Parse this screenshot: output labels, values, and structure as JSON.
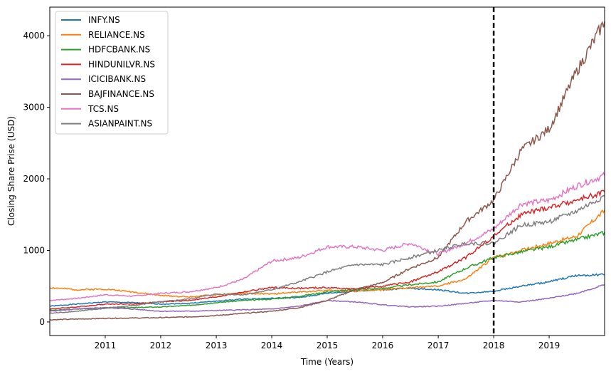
{
  "chart_data": {
    "type": "line",
    "title": "",
    "xlabel": "Time (Years)",
    "ylabel": "Closing Share Prise (USD)",
    "xlim": [
      "2010-01-01",
      "2020-01-01"
    ],
    "ylim": [
      -190,
      4400
    ],
    "x_ticks": [
      "2011",
      "2012",
      "2013",
      "2014",
      "2015",
      "2016",
      "2017",
      "2018",
      "2019"
    ],
    "y_ticks": [
      0,
      1000,
      2000,
      3000,
      4000
    ],
    "grid": false,
    "legend_position": "upper left",
    "vline": {
      "x": "2018-01-01",
      "style": "dashed",
      "color": "#000000"
    },
    "x": [
      "2010-01-01",
      "2010-07-01",
      "2011-01-01",
      "2011-07-01",
      "2012-01-01",
      "2012-07-01",
      "2013-01-01",
      "2013-07-01",
      "2014-01-01",
      "2014-07-01",
      "2015-01-01",
      "2015-07-01",
      "2016-01-01",
      "2016-07-01",
      "2017-01-01",
      "2017-07-01",
      "2018-01-01",
      "2018-07-01",
      "2019-01-01",
      "2019-07-01",
      "2020-01-01"
    ],
    "series": [
      {
        "name": "INFY.NS",
        "color": "#1f77b4",
        "values": [
          220,
          250,
          280,
          270,
          250,
          260,
          290,
          320,
          330,
          340,
          400,
          430,
          450,
          470,
          450,
          400,
          430,
          500,
          560,
          650,
          660
        ]
      },
      {
        "name": "RELIANCE.NS",
        "color": "#ff7f0e",
        "values": [
          480,
          450,
          460,
          420,
          370,
          350,
          380,
          400,
          390,
          420,
          440,
          430,
          450,
          480,
          500,
          600,
          900,
          1000,
          1100,
          1200,
          1560
        ]
      },
      {
        "name": "HDFCBANK.NS",
        "color": "#2ca02c",
        "values": [
          160,
          180,
          200,
          200,
          210,
          230,
          270,
          300,
          320,
          360,
          420,
          450,
          470,
          520,
          560,
          750,
          900,
          980,
          1050,
          1150,
          1250
        ]
      },
      {
        "name": "HINDUNILVR.NS",
        "color": "#d62728",
        "values": [
          180,
          210,
          250,
          250,
          280,
          300,
          350,
          420,
          480,
          470,
          480,
          460,
          500,
          560,
          700,
          900,
          1200,
          1500,
          1600,
          1700,
          1820
        ]
      },
      {
        "name": "ICICIBANK.NS",
        "color": "#9467bd",
        "values": [
          150,
          180,
          200,
          180,
          150,
          150,
          160,
          170,
          180,
          220,
          300,
          280,
          240,
          210,
          220,
          260,
          300,
          280,
          330,
          400,
          520
        ]
      },
      {
        "name": "BAJFINANCE.NS",
        "color": "#8c564b",
        "values": [
          30,
          40,
          50,
          55,
          60,
          70,
          90,
          120,
          150,
          200,
          300,
          450,
          550,
          750,
          900,
          1400,
          1700,
          2400,
          2700,
          3500,
          4200
        ]
      },
      {
        "name": "TCS.NS",
        "color": "#e377c2",
        "values": [
          300,
          330,
          380,
          360,
          400,
          420,
          480,
          600,
          850,
          900,
          1050,
          1050,
          1000,
          1100,
          950,
          1100,
          1300,
          1650,
          1700,
          1900,
          2050
        ]
      },
      {
        "name": "ASIANPAINT.NS",
        "color": "#7f7f7f",
        "values": [
          120,
          150,
          190,
          230,
          280,
          320,
          390,
          380,
          450,
          560,
          700,
          800,
          800,
          900,
          1000,
          1100,
          1100,
          1350,
          1400,
          1550,
          1760
        ]
      }
    ]
  }
}
